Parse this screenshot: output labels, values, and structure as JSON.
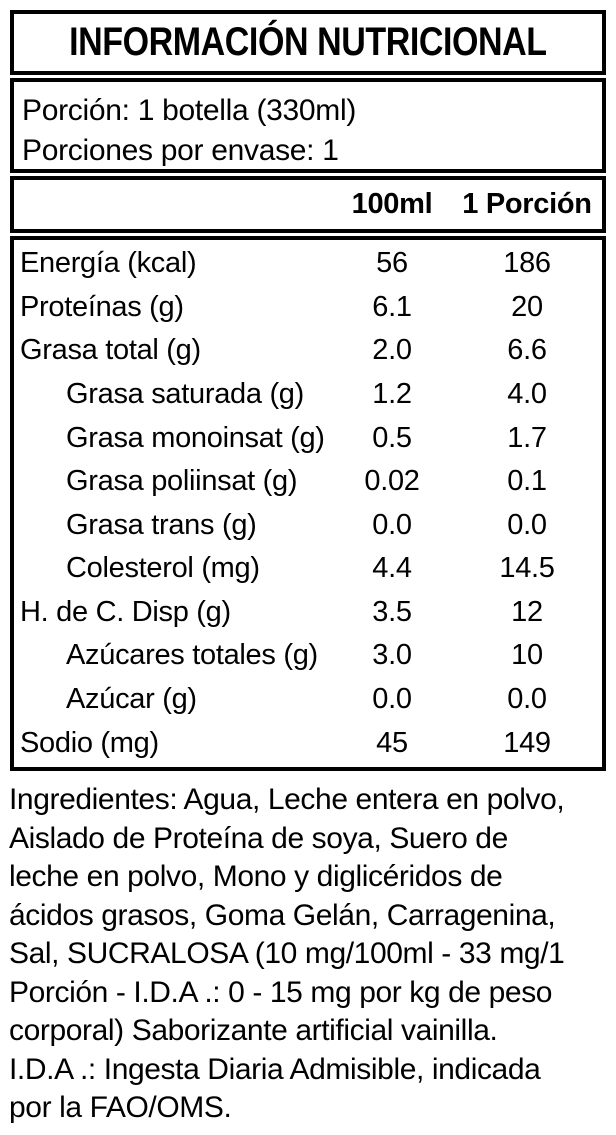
{
  "colors": {
    "text": "#000000",
    "background": "#ffffff",
    "border": "#000000"
  },
  "label": {
    "title": "INFORMACIÓN NUTRICIONAL",
    "serving": {
      "line1": "Porción: 1 botella (330ml)",
      "line2": "Porciones por envase: 1"
    },
    "columns": {
      "col1": "100ml",
      "col2": "1 Porción"
    },
    "rows": [
      {
        "label": "Energía (kcal)",
        "per100ml": "56",
        "perPorcion": "186",
        "indent": false
      },
      {
        "label": "Proteínas (g)",
        "per100ml": "6.1",
        "perPorcion": "20",
        "indent": false
      },
      {
        "label": "Grasa total (g)",
        "per100ml": "2.0",
        "perPorcion": "6.6",
        "indent": false
      },
      {
        "label": "Grasa saturada (g)",
        "per100ml": "1.2",
        "perPorcion": "4.0",
        "indent": true
      },
      {
        "label": "Grasa monoinsat (g)",
        "per100ml": "0.5",
        "perPorcion": "1.7",
        "indent": true
      },
      {
        "label": "Grasa poliinsat (g)",
        "per100ml": "0.02",
        "perPorcion": "0.1",
        "indent": true
      },
      {
        "label": "Grasa trans (g)",
        "per100ml": "0.0",
        "perPorcion": "0.0",
        "indent": true
      },
      {
        "label": "Colesterol (mg)",
        "per100ml": "4.4",
        "perPorcion": "14.5",
        "indent": true
      },
      {
        "label": "H. de C. Disp (g)",
        "per100ml": "3.5",
        "perPorcion": "12",
        "indent": false
      },
      {
        "label": "Azúcares totales (g)",
        "per100ml": "3.0",
        "perPorcion": "10",
        "indent": true
      },
      {
        "label": "Azúcar (g)",
        "per100ml": "0.0",
        "perPorcion": "0.0",
        "indent": true
      },
      {
        "label": "Sodio (mg)",
        "per100ml": "45",
        "perPorcion": "149",
        "indent": false
      }
    ]
  },
  "ingredients": {
    "lines": [
      "Ingredientes: Agua, Leche entera en polvo,",
      "Aislado de Proteína de soya, Suero de",
      "leche en polvo, Mono y diglicéridos de",
      "ácidos grasos, Goma Gelán, Carragenina,",
      "Sal, SUCRALOSA (10 mg/100ml - 33 mg/1",
      "Porción - I.D.A .: 0 - 15 mg por kg de peso",
      "corporal) Saborizante artificial vainilla.",
      "I.D.A .: Ingesta Diaria Admisible, indicada",
      "por la FAO/OMS."
    ]
  }
}
